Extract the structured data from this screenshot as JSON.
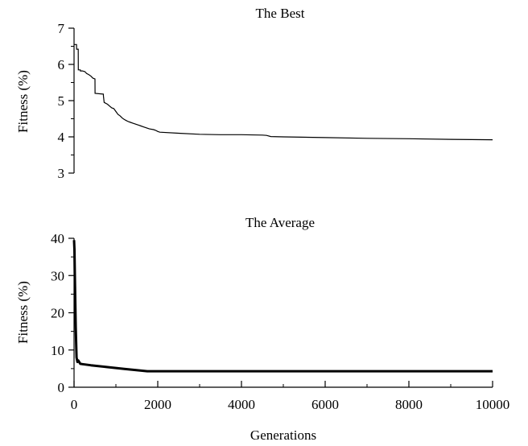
{
  "chart_data": [
    {
      "type": "line",
      "title": "The Best",
      "xlabel": "",
      "ylabel": "Fitness (%)",
      "xlim": [
        0,
        10000
      ],
      "ylim": [
        3,
        7
      ],
      "yticks": [
        3,
        4,
        5,
        6,
        7
      ],
      "grid": false,
      "line_width": "thin",
      "series": [
        {
          "x": [
            0,
            60,
            61,
            100,
            101,
            150,
            151,
            200,
            260,
            300,
            350,
            400,
            450,
            500,
            501,
            700,
            701,
            720,
            800,
            850,
            900,
            950,
            1000,
            1050,
            1100,
            1150,
            1200,
            1250,
            1300,
            1350,
            1400,
            1450,
            1500,
            1550,
            1600,
            1650,
            1700,
            1750,
            1800,
            1900,
            1950,
            2000,
            2050,
            2500,
            3000,
            3500,
            4000,
            4500,
            4600,
            4700,
            5000,
            6000,
            7000,
            8000,
            9000,
            10000
          ],
          "y": [
            6.55,
            6.55,
            6.42,
            6.42,
            5.85,
            5.85,
            5.82,
            5.82,
            5.8,
            5.75,
            5.72,
            5.68,
            5.62,
            5.6,
            5.2,
            5.18,
            5.13,
            4.95,
            4.9,
            4.85,
            4.8,
            4.78,
            4.7,
            4.62,
            4.58,
            4.52,
            4.48,
            4.45,
            4.42,
            4.4,
            4.38,
            4.36,
            4.34,
            4.32,
            4.3,
            4.28,
            4.26,
            4.24,
            4.22,
            4.2,
            4.18,
            4.15,
            4.13,
            4.1,
            4.07,
            4.06,
            4.06,
            4.05,
            4.04,
            4.01,
            4.0,
            3.98,
            3.96,
            3.95,
            3.93,
            3.92
          ]
        }
      ]
    },
    {
      "type": "line",
      "title": "The Average",
      "xlabel": "Generations",
      "ylabel": "Fitness (%)",
      "xlim": [
        0,
        10000
      ],
      "ylim": [
        0,
        40
      ],
      "yticks": [
        0,
        10,
        20,
        30,
        40
      ],
      "xticks": [
        0,
        2000,
        4000,
        6000,
        8000,
        10000
      ],
      "grid": false,
      "line_width": "thick",
      "series": [
        {
          "x": [
            0,
            10,
            20,
            40,
            60,
            80,
            100,
            150,
            200,
            400,
            800,
            1200,
            1750,
            2000,
            3000,
            4000,
            5000,
            6000,
            7000,
            8000,
            9000,
            10000
          ],
          "y": [
            39.5,
            37,
            30,
            16,
            8,
            6.8,
            7.2,
            6.3,
            6.2,
            5.9,
            5.4,
            4.9,
            4.3,
            4.3,
            4.3,
            4.3,
            4.3,
            4.3,
            4.3,
            4.3,
            4.3,
            4.3
          ]
        }
      ]
    }
  ]
}
